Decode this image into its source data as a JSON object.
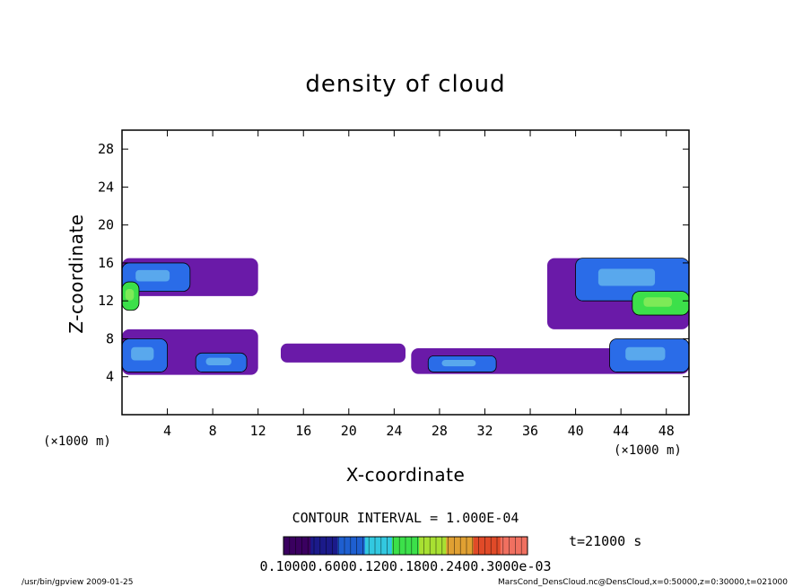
{
  "chart_data": {
    "type": "heatmap",
    "title": "density of cloud",
    "xlabel": "X-coordinate",
    "ylabel": "Z-coordinate",
    "x_unit_left": "(×1000 m)",
    "x_unit_right": "(×1000 m)",
    "xlim": [
      0,
      50
    ],
    "ylim": [
      0,
      30
    ],
    "xticks": [
      4,
      8,
      12,
      16,
      20,
      24,
      28,
      32,
      36,
      40,
      44,
      48
    ],
    "yticks": [
      4,
      8,
      12,
      16,
      20,
      24,
      28
    ],
    "contour_interval": "CONTOUR INTERVAL = 1.000E-04",
    "time_label": "t=21000 s",
    "colorbar_label": "0.10000.6000.1200.1800.2400.3000e-03",
    "colorbar_values": [
      0.1,
      0.6,
      1.2,
      1.8,
      2.4,
      3.0
    ],
    "colorbar_colors": [
      "#3a0060",
      "#1b1a8a",
      "#1e5fd0",
      "#32c8e0",
      "#3ce04a",
      "#a8e032",
      "#e0a032",
      "#e04a28",
      "#f07060"
    ],
    "regions": [
      {
        "name": "left-upper-layer",
        "x": [
          0,
          12
        ],
        "z": [
          12.5,
          16.5
        ],
        "level": "low"
      },
      {
        "name": "left-upper-core",
        "x": [
          0,
          6
        ],
        "z": [
          13,
          16
        ],
        "level": "mid"
      },
      {
        "name": "left-green-patch",
        "x": [
          0,
          1.5
        ],
        "z": [
          11,
          14
        ],
        "level": "high"
      },
      {
        "name": "left-lower-layer",
        "x": [
          0,
          12
        ],
        "z": [
          4.2,
          9
        ],
        "level": "low"
      },
      {
        "name": "left-lower-core",
        "x": [
          0,
          4
        ],
        "z": [
          4.5,
          8
        ],
        "level": "mid"
      },
      {
        "name": "lower-core-8km",
        "x": [
          6.5,
          11
        ],
        "z": [
          4.5,
          6.5
        ],
        "level": "mid"
      },
      {
        "name": "middle-thin-layer",
        "x": [
          14,
          25
        ],
        "z": [
          5.5,
          7.5
        ],
        "level": "low"
      },
      {
        "name": "right-lower-layer",
        "x": [
          25.5,
          50
        ],
        "z": [
          4.3,
          7
        ],
        "level": "low"
      },
      {
        "name": "right-lower-core",
        "x": [
          27,
          33
        ],
        "z": [
          4.5,
          6.2
        ],
        "level": "mid"
      },
      {
        "name": "right-upper-layer",
        "x": [
          37.5,
          50
        ],
        "z": [
          9,
          16.5
        ],
        "level": "low"
      },
      {
        "name": "right-upper-core",
        "x": [
          40,
          50
        ],
        "z": [
          12,
          16.5
        ],
        "level": "mid"
      },
      {
        "name": "right-green-patch",
        "x": [
          45,
          50
        ],
        "z": [
          10.5,
          13
        ],
        "level": "high"
      },
      {
        "name": "right-lower-core2",
        "x": [
          43,
          50
        ],
        "z": [
          4.5,
          8
        ],
        "level": "mid"
      }
    ]
  },
  "footer": {
    "left": "/usr/bin/gpview  2009-01-25",
    "right": "MarsCond_DensCloud.nc@DensCloud,x=0:50000,z=0:30000,t=021000"
  }
}
